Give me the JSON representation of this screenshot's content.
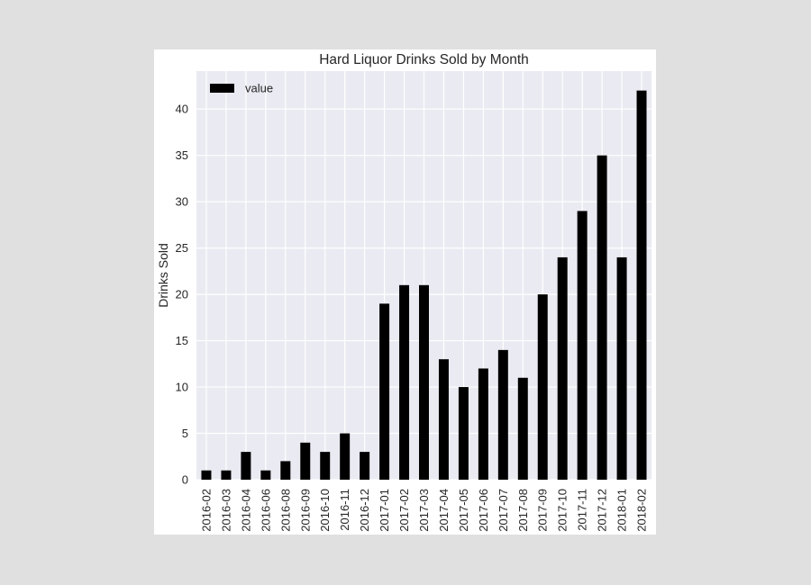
{
  "chart_data": {
    "type": "bar",
    "title": "Hard Liquor Drinks Sold by Month",
    "xlabel": "",
    "ylabel": "Drinks Sold",
    "categories": [
      "2016-02",
      "2016-03",
      "2016-04",
      "2016-06",
      "2016-08",
      "2016-09",
      "2016-10",
      "2016-11",
      "2016-12",
      "2017-01",
      "2017-02",
      "2017-03",
      "2017-04",
      "2017-05",
      "2017-06",
      "2017-07",
      "2017-08",
      "2017-09",
      "2017-10",
      "2017-11",
      "2017-12",
      "2018-01",
      "2018-02"
    ],
    "series": [
      {
        "name": "value",
        "values": [
          1,
          1,
          3,
          1,
          2,
          4,
          3,
          5,
          3,
          19,
          21,
          21,
          13,
          10,
          12,
          14,
          11,
          20,
          24,
          29,
          35,
          24,
          42
        ]
      }
    ],
    "ylim": [
      0,
      44.1
    ],
    "yticks": [
      0,
      5,
      10,
      15,
      20,
      25,
      30,
      35,
      40
    ],
    "grid": true,
    "legend_position": "top-left",
    "colors": {
      "bar": "#000000",
      "plot_background": "#eaeaf2",
      "grid": "#ffffff",
      "figure_background": "#ffffff",
      "page_background": "#dfe0df",
      "text": "#262626"
    }
  }
}
